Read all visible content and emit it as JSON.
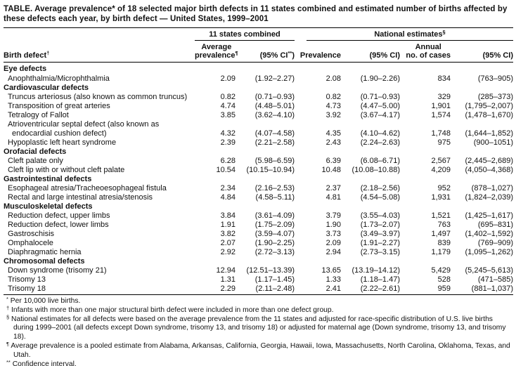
{
  "title": {
    "line1": "TABLE. Average prevalence* of 18 selected major birth defects in 11 states combined and estimated number of births affected by",
    "line2": "these defects each year, by birth defect — United States, 1999–2001"
  },
  "header": {
    "groups": {
      "states": {
        "label": "11 states combined"
      },
      "national": {
        "label": "National estimates",
        "marker": "§"
      }
    },
    "columns": {
      "defect": {
        "label": "Birth defect",
        "marker": "†"
      },
      "avg_prev": {
        "line1": "Average",
        "line2": "prevalence",
        "marker": "¶"
      },
      "ci_states": {
        "pre": "(95% CI",
        "marker": "**",
        "post": ")"
      },
      "prevalence": {
        "label": "Prevalence"
      },
      "ci_national": {
        "label": "(95% CI)"
      },
      "annual_cases": {
        "line1": "Annual",
        "line2": "no. of cases"
      },
      "ci_cases": {
        "label": "(95% CI)"
      }
    }
  },
  "chart_data": {
    "type": "table",
    "title": "Average prevalence of 18 selected major birth defects in 11 states combined and estimated number of births affected by these defects each year, by birth defect — United States, 1999–2001",
    "columns": [
      "Birth defect",
      "11 states combined: Average prevalence",
      "11 states combined: (95% CI)",
      "National estimates: Prevalence",
      "National estimates: (95% CI)",
      "National estimates: Annual no. of cases",
      "National estimates: (95% CI)"
    ]
  },
  "table": {
    "rows": [
      {
        "type": "section",
        "label": "Eye defects",
        "values": null
      },
      {
        "type": "defect",
        "label": "Anophthalmia/Microphthalmia",
        "values": [
          "2.09",
          "(1.92–2.27)",
          "2.08",
          "(1.90–2.26)",
          "834",
          "(763–905)"
        ]
      },
      {
        "type": "section",
        "label": "Cardiovascular defects",
        "values": null
      },
      {
        "type": "defect",
        "label": "Truncus arteriosus (also known as common truncus)",
        "values": [
          "0.82",
          "(0.71–0.93)",
          "0.82",
          "(0.71–0.93)",
          "329",
          "(285–373)"
        ]
      },
      {
        "type": "defect",
        "label": "Transposition of great arteries",
        "values": [
          "4.74",
          "(4.48–5.01)",
          "4.73",
          "(4.47–5.00)",
          "1,901",
          "(1,795–2,007)"
        ]
      },
      {
        "type": "defect",
        "label": "Tetralogy of Fallot",
        "values": [
          "3.85",
          "(3.62–4.10)",
          "3.92",
          "(3.67–4.17)",
          "1,574",
          "(1,478–1,670)"
        ]
      },
      {
        "type": "defect",
        "label": "Atrioventricular septal defect (also known as",
        "values": null
      },
      {
        "type": "continuation",
        "label": "endocardial cushion defect)",
        "values": [
          "4.32",
          "(4.07–4.58)",
          "4.35",
          "(4.10–4.62)",
          "1,748",
          "(1,644–1,852)"
        ]
      },
      {
        "type": "defect",
        "label": "Hypoplastic left heart syndrome",
        "values": [
          "2.39",
          "(2.21–2.58)",
          "2.43",
          "(2.24–2.63)",
          "975",
          "(900–1051)"
        ]
      },
      {
        "type": "section",
        "label": "Orofacial defects",
        "values": null
      },
      {
        "type": "defect",
        "label": "Cleft palate only",
        "values": [
          "6.28",
          "(5.98–6.59)",
          "6.39",
          "(6.08–6.71)",
          "2,567",
          "(2,445–2,689)"
        ]
      },
      {
        "type": "defect",
        "label": "Cleft lip with or without cleft palate",
        "values": [
          "10.54",
          "(10.15–10.94)",
          "10.48",
          "(10.08–10.88)",
          "4,209",
          "(4,050–4,368)"
        ]
      },
      {
        "type": "section",
        "label": "Gastrointestinal defects",
        "values": null
      },
      {
        "type": "defect",
        "label": "Esophageal atresia/Tracheoesophageal fistula",
        "values": [
          "2.34",
          "(2.16–2.53)",
          "2.37",
          "(2.18–2.56)",
          "952",
          "(878–1,027)"
        ]
      },
      {
        "type": "defect",
        "label": "Rectal and large intestinal atresia/stenosis",
        "values": [
          "4.84",
          "(4.58–5.11)",
          "4.81",
          "(4.54–5.08)",
          "1,931",
          "(1,824–2,039)"
        ]
      },
      {
        "type": "section",
        "label": "Musculoskeletal defects",
        "values": null
      },
      {
        "type": "defect",
        "label": "Reduction defect, upper limbs",
        "values": [
          "3.84",
          "(3.61–4.09)",
          "3.79",
          "(3.55–4.03)",
          "1,521",
          "(1,425–1,617)"
        ]
      },
      {
        "type": "defect",
        "label": "Reduction defect, lower limbs",
        "values": [
          "1.91",
          "(1.75–2.09)",
          "1.90",
          "(1.73–2.07)",
          "763",
          "(695–831)"
        ]
      },
      {
        "type": "defect",
        "label": "Gastroschisis",
        "values": [
          "3.82",
          "(3.59–4.07)",
          "3.73",
          "(3.49–3.97)",
          "1,497",
          "(1,402–1,592)"
        ]
      },
      {
        "type": "defect",
        "label": "Omphalocele",
        "values": [
          "2.07",
          "(1.90–2.25)",
          "2.09",
          "(1.91–2.27)",
          "839",
          "(769–909)"
        ]
      },
      {
        "type": "defect",
        "label": "Diaphragmatic hernia",
        "values": [
          "2.92",
          "(2.72–3.13)",
          "2.94",
          "(2.73–3.15)",
          "1,179",
          "(1,095–1,262)"
        ]
      },
      {
        "type": "section",
        "label": "Chromosomal defects",
        "values": null
      },
      {
        "type": "defect",
        "label": "Down syndrome (trisomy 21)",
        "values": [
          "12.94",
          "(12.51–13.39)",
          "13.65",
          "(13.19–14.12)",
          "5,429",
          "(5,245–5,613)"
        ]
      },
      {
        "type": "defect",
        "label": "Trisomy 13",
        "values": [
          "1.31",
          "(1.17–1.45)",
          "1.33",
          "(1.18–1.47)",
          "528",
          "(471–585)"
        ]
      },
      {
        "type": "defect",
        "label": "Trisomy 18",
        "values": [
          "2.29",
          "(2.11–2.48)",
          "2.41",
          "(2.22–2.61)",
          "959",
          "(881–1,037)"
        ]
      }
    ]
  },
  "footnotes": [
    {
      "marker": "*",
      "text": "Per 10,000 live births."
    },
    {
      "marker": "†",
      "text": "Infants with more than one major structural birth defect were included in more than one defect group."
    },
    {
      "marker": "§",
      "text": "National estimates for all defects were based on the average prevalence from the 11 states and adjusted for race-specific distribution of U.S. live births during 1999–2001 (all defects except Down syndrome, trisomy 13, and trisomy 18) or adjusted for maternal age (Down syndrome, trisomy 13, and trisomy 18)."
    },
    {
      "marker": "¶",
      "text": "Average prevalence is a pooled estimate from Alabama, Arkansas, California, Georgia, Hawaii, Iowa, Massachusetts, North Carolina, Oklahoma, Texas, and Utah."
    },
    {
      "marker": "**",
      "text": "Confidence interval."
    }
  ]
}
